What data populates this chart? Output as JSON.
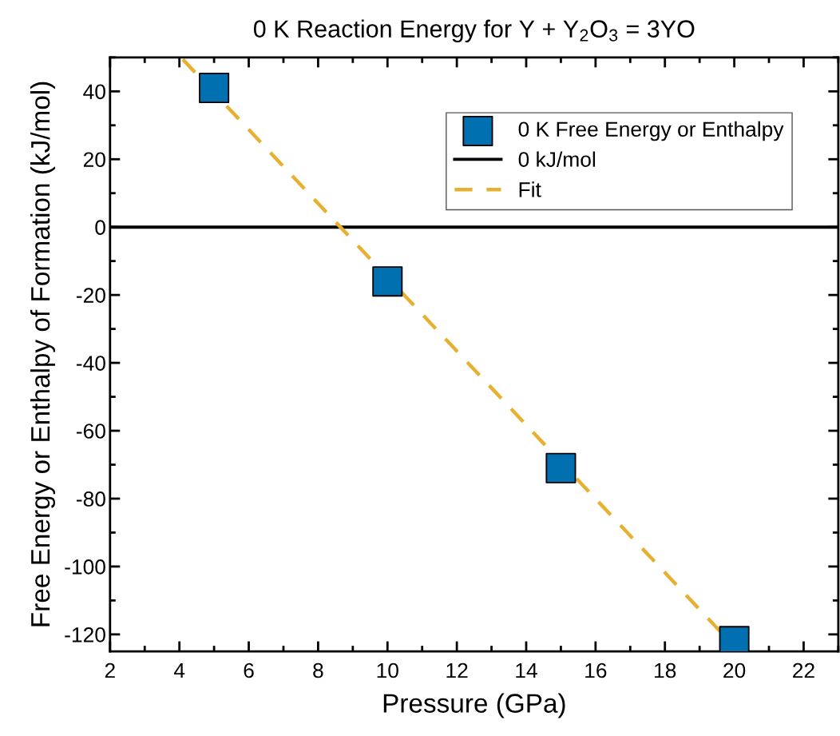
{
  "chart_data": {
    "type": "scatter",
    "title": "0 K Reaction Energy for Y + Y$_{2}$O$_{3}$ = 3YO",
    "xlabel": "Pressure (GPa)",
    "ylabel": "Free Energy or Enthalpy of Formation (kJ/mol)",
    "x": [
      5,
      10,
      15,
      20
    ],
    "series": [
      {
        "name": "0 K Free Energy or Enthalpy",
        "color": "#0070b0",
        "values": [
          41,
          -16,
          -71,
          -122
        ],
        "marker": "square"
      },
      {
        "name": "Fit",
        "type": "line",
        "color": "#e6b030",
        "x": [
          4.1,
          19.6
        ],
        "values": [
          49.4,
          -119.2
        ],
        "line_style": "dashed",
        "marker": "none"
      }
    ],
    "ref_lines": [
      {
        "axis": "y",
        "value": 0,
        "label": "0 kJ/mol",
        "color": "#000000",
        "line_style": "solid"
      }
    ],
    "xlim": [
      2,
      23
    ],
    "xticks": [
      2,
      4,
      6,
      8,
      10,
      12,
      14,
      16,
      18,
      20,
      22
    ],
    "ylim": [
      -125,
      50
    ],
    "yticks": [
      -120,
      -100,
      -80,
      -60,
      -40,
      -20,
      0,
      20,
      40
    ],
    "grid": false,
    "legend": "top right"
  }
}
